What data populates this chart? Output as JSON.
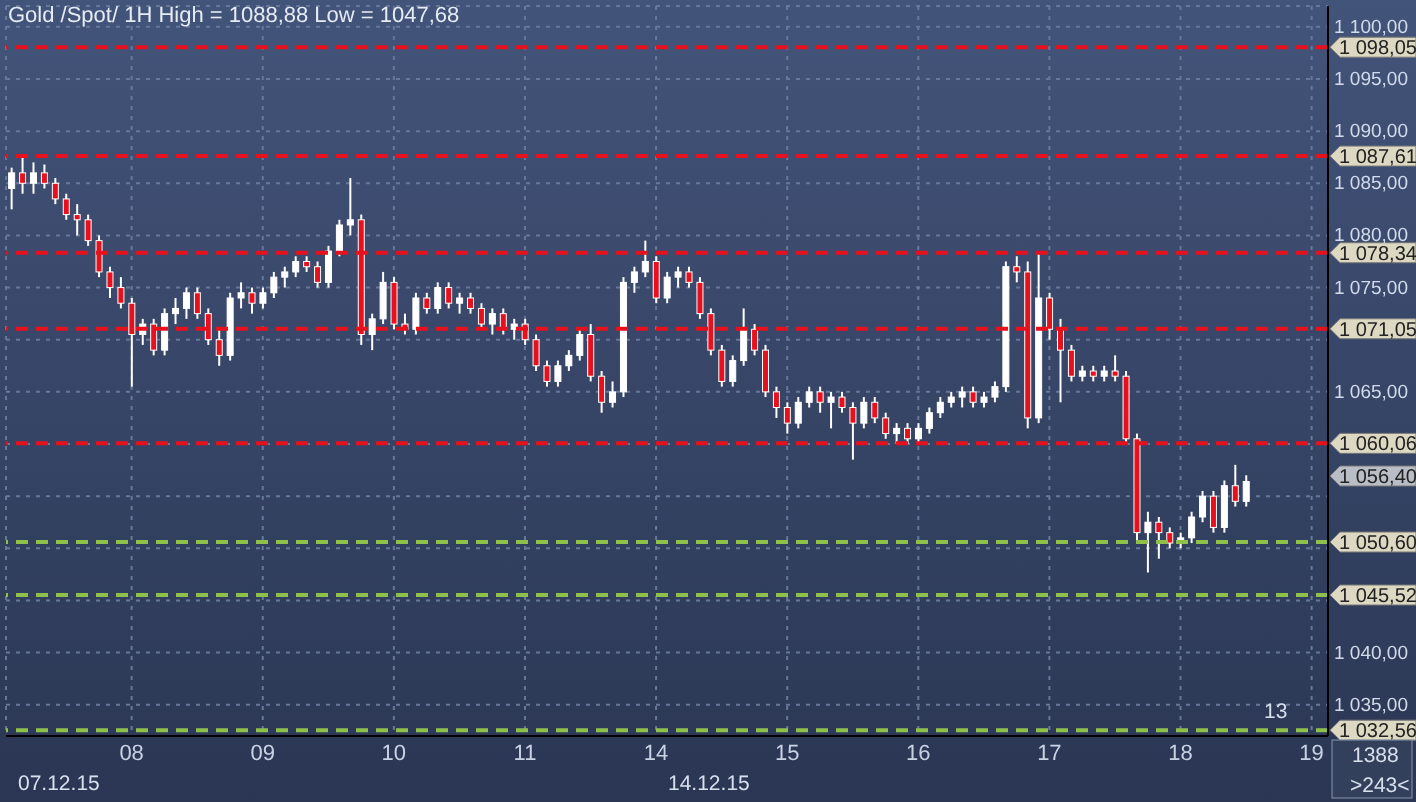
{
  "chart_data": {
    "type": "candlestick",
    "title": "Gold /Spot/ 1H High = 1088,88 Low = 1047,68",
    "categories": [
      null,
      null,
      null,
      null,
      null,
      null,
      null,
      null,
      null,
      null,
      null,
      "08",
      null,
      null,
      null,
      null,
      null,
      null,
      null,
      null,
      null,
      null,
      null,
      "09",
      null,
      null,
      null,
      null,
      null,
      null,
      null,
      null,
      null,
      null,
      null,
      "10",
      null,
      null,
      null,
      null,
      null,
      null,
      null,
      null,
      null,
      null,
      null,
      "11",
      null,
      null,
      null,
      null,
      null,
      null,
      null,
      null,
      null,
      null,
      null,
      "14",
      null,
      null,
      null,
      null,
      null,
      null,
      null,
      null,
      null,
      null,
      null,
      "15",
      null,
      null,
      null,
      null,
      null,
      null,
      null,
      null,
      null,
      null,
      null,
      "16",
      null,
      null,
      null,
      null,
      null,
      null,
      null,
      null,
      null,
      null,
      null,
      "17",
      null,
      null,
      null,
      null,
      null,
      null,
      null,
      null,
      null,
      null,
      null,
      "18",
      null,
      null,
      null,
      null,
      null,
      null,
      null,
      null,
      null,
      null,
      null,
      "19",
      null
    ],
    "ohlc": [
      [
        1084.5,
        1086.5,
        1082.5,
        1086
      ],
      [
        1086,
        1087.5,
        1084,
        1085
      ],
      [
        1085,
        1087,
        1084,
        1086
      ],
      [
        1086,
        1086.8,
        1084.5,
        1085
      ],
      [
        1085,
        1085.5,
        1083,
        1083.5
      ],
      [
        1083.5,
        1084,
        1081.5,
        1082
      ],
      [
        1082,
        1083,
        1080,
        1081.5
      ],
      [
        1081.5,
        1082,
        1079,
        1079.5
      ],
      [
        1079.5,
        1080,
        1076,
        1076.5
      ],
      [
        1076.5,
        1077,
        1074,
        1075
      ],
      [
        1075,
        1076,
        1073,
        1073.5
      ],
      [
        1073.5,
        1074,
        1065.5,
        1070.5
      ],
      [
        1070.5,
        1072,
        1069.5,
        1071.5
      ],
      [
        1071.5,
        1072,
        1068.5,
        1069
      ],
      [
        1069,
        1073,
        1068.5,
        1072.5
      ],
      [
        1072.5,
        1074,
        1071.5,
        1073
      ],
      [
        1073,
        1075,
        1072,
        1074.5
      ],
      [
        1074.5,
        1075,
        1072,
        1072.5
      ],
      [
        1072.5,
        1073,
        1069.5,
        1070
      ],
      [
        1070,
        1071,
        1067.5,
        1068.5
      ],
      [
        1068.5,
        1074.5,
        1068,
        1074
      ],
      [
        1074,
        1075.5,
        1073,
        1074.5
      ],
      [
        1074.5,
        1075,
        1072.5,
        1073.5
      ],
      [
        1073.5,
        1075,
        1073,
        1074.5
      ],
      [
        1074.5,
        1076.5,
        1074,
        1076
      ],
      [
        1076,
        1077,
        1075,
        1076.5
      ],
      [
        1076.5,
        1078,
        1076,
        1077.5
      ],
      [
        1077.5,
        1078,
        1076.5,
        1077
      ],
      [
        1077,
        1077.5,
        1075,
        1075.5
      ],
      [
        1075.5,
        1079,
        1075,
        1078.5
      ],
      [
        1078.5,
        1081.5,
        1078,
        1081
      ],
      [
        1081,
        1085.5,
        1080,
        1081.5
      ],
      [
        1081.5,
        1082,
        1069.5,
        1070.5
      ],
      [
        1070.5,
        1072.5,
        1069,
        1072
      ],
      [
        1072,
        1076.5,
        1071.5,
        1075.5
      ],
      [
        1075.5,
        1076,
        1071,
        1071.5
      ],
      [
        1071.5,
        1072.5,
        1070.5,
        1071
      ],
      [
        1071,
        1074.5,
        1070.5,
        1074
      ],
      [
        1074,
        1074.5,
        1072.5,
        1073
      ],
      [
        1073,
        1075.5,
        1072.5,
        1075
      ],
      [
        1075,
        1075.5,
        1073,
        1073.5
      ],
      [
        1073.5,
        1074.5,
        1072.5,
        1074
      ],
      [
        1074,
        1074.5,
        1072.5,
        1073
      ],
      [
        1073,
        1073.5,
        1071,
        1071.5
      ],
      [
        1071.5,
        1073,
        1070.5,
        1072.5
      ],
      [
        1072.5,
        1073,
        1070.5,
        1071
      ],
      [
        1071,
        1072,
        1070,
        1071.5
      ],
      [
        1071.5,
        1072,
        1069.5,
        1070
      ],
      [
        1070,
        1070.5,
        1067,
        1067.5
      ],
      [
        1067.5,
        1068,
        1065.5,
        1066
      ],
      [
        1066,
        1068,
        1065.5,
        1067.5
      ],
      [
        1067.5,
        1069,
        1067,
        1068.5
      ],
      [
        1068.5,
        1071,
        1068,
        1070.5
      ],
      [
        1070.5,
        1071.5,
        1066,
        1066.5
      ],
      [
        1066.5,
        1067,
        1063,
        1064
      ],
      [
        1064,
        1066,
        1063.5,
        1065
      ],
      [
        1065,
        1076,
        1064.5,
        1075.5
      ],
      [
        1075.5,
        1077,
        1074.5,
        1076.5
      ],
      [
        1076.5,
        1079.5,
        1076,
        1077.5
      ],
      [
        1077.5,
        1078,
        1073.5,
        1074
      ],
      [
        1074,
        1076.5,
        1073.5,
        1076
      ],
      [
        1076,
        1077,
        1075,
        1076.5
      ],
      [
        1076.5,
        1077,
        1075,
        1075.5
      ],
      [
        1075.5,
        1076,
        1072,
        1072.5
      ],
      [
        1072.5,
        1073,
        1068.5,
        1069
      ],
      [
        1069,
        1069.5,
        1065.5,
        1066
      ],
      [
        1066,
        1068.5,
        1065.5,
        1068
      ],
      [
        1068,
        1073,
        1067.5,
        1071
      ],
      [
        1071,
        1071.5,
        1068.5,
        1069
      ],
      [
        1069,
        1069.5,
        1064.5,
        1065
      ],
      [
        1065,
        1065.5,
        1062.5,
        1063.5
      ],
      [
        1063.5,
        1064,
        1061,
        1062
      ],
      [
        1062,
        1064.5,
        1061.5,
        1064
      ],
      [
        1064,
        1065.5,
        1063.5,
        1065
      ],
      [
        1065,
        1065.5,
        1063,
        1064
      ],
      [
        1064,
        1065,
        1061.5,
        1064.5
      ],
      [
        1064.5,
        1065,
        1063,
        1063.5
      ],
      [
        1063.5,
        1064,
        1058.5,
        1062
      ],
      [
        1062,
        1064.5,
        1061.5,
        1064
      ],
      [
        1064,
        1064.5,
        1062,
        1062.5
      ],
      [
        1062.5,
        1063,
        1060.5,
        1061
      ],
      [
        1061,
        1062,
        1060,
        1061.5
      ],
      [
        1061.5,
        1062,
        1060,
        1060.5
      ],
      [
        1060.5,
        1062,
        1060,
        1061.5
      ],
      [
        1061.5,
        1063.5,
        1061,
        1063
      ],
      [
        1063,
        1064.5,
        1062.5,
        1064
      ],
      [
        1064,
        1065,
        1063.5,
        1064.5
      ],
      [
        1064.5,
        1065.5,
        1063.5,
        1065
      ],
      [
        1065,
        1065.5,
        1063.5,
        1064
      ],
      [
        1064,
        1065,
        1063.5,
        1064.5
      ],
      [
        1064.5,
        1066,
        1064,
        1065.5
      ],
      [
        1065.5,
        1077.5,
        1065,
        1077
      ],
      [
        1077,
        1078,
        1075.5,
        1076.5
      ],
      [
        1076.5,
        1077.5,
        1061.5,
        1062.5
      ],
      [
        1062.5,
        1078.34,
        1062,
        1074
      ],
      [
        1074,
        1074.5,
        1070,
        1071
      ],
      [
        1071,
        1072,
        1064,
        1069
      ],
      [
        1069,
        1069.5,
        1066,
        1066.5
      ],
      [
        1066.5,
        1067.5,
        1066,
        1067
      ],
      [
        1067,
        1067.5,
        1066,
        1066.5
      ],
      [
        1066.5,
        1067.5,
        1066,
        1067
      ],
      [
        1067,
        1068.5,
        1066,
        1066.5
      ],
      [
        1066.5,
        1067,
        1060,
        1060.5
      ],
      [
        1060.5,
        1061,
        1050.5,
        1051.5
      ],
      [
        1051.5,
        1053.5,
        1047.68,
        1052.5
      ],
      [
        1052.5,
        1053,
        1049,
        1051.5
      ],
      [
        1051.5,
        1052,
        1050,
        1050.5
      ],
      [
        1050.5,
        1051.5,
        1050,
        1051
      ],
      [
        1051,
        1053.5,
        1050.5,
        1053
      ],
      [
        1053,
        1055.5,
        1052.5,
        1055
      ],
      [
        1055,
        1055.5,
        1051.5,
        1052
      ],
      [
        1052,
        1056.5,
        1051.5,
        1056
      ],
      [
        1056,
        1058,
        1054,
        1054.5
      ],
      [
        1054.5,
        1057,
        1054,
        1056.4
      ],
      null,
      null,
      null,
      null,
      null,
      null,
      null
    ],
    "colors": [
      "#ffffff",
      "#e8101c",
      "#ffffff",
      "#e8101c",
      "#e8101c",
      "#e8101c",
      "#e8101c",
      "#e8101c",
      "#e8101c",
      "#e8101c",
      "#e8101c",
      "#e8101c",
      "#ffffff",
      "#e8101c",
      "#ffffff",
      "#ffffff",
      "#ffffff",
      "#e8101c",
      "#e8101c",
      "#e8101c",
      "#ffffff",
      "#ffffff",
      "#e8101c",
      "#ffffff",
      "#ffffff",
      "#ffffff",
      "#ffffff",
      "#e8101c",
      "#e8101c",
      "#ffffff",
      "#ffffff",
      "#ffffff",
      "#e8101c",
      "#ffffff",
      "#ffffff",
      "#e8101c",
      "#e8101c",
      "#ffffff",
      "#e8101c",
      "#ffffff",
      "#e8101c",
      "#ffffff",
      "#e8101c",
      "#e8101c",
      "#ffffff",
      "#e8101c",
      "#ffffff",
      "#e8101c",
      "#e8101c",
      "#e8101c",
      "#ffffff",
      "#ffffff",
      "#ffffff",
      "#e8101c",
      "#e8101c",
      "#ffffff",
      "#ffffff",
      "#ffffff",
      "#ffffff",
      "#e8101c",
      "#ffffff",
      "#ffffff",
      "#e8101c",
      "#e8101c",
      "#e8101c",
      "#e8101c",
      "#ffffff",
      "#ffffff",
      "#e8101c",
      "#e8101c",
      "#e8101c",
      "#e8101c",
      "#ffffff",
      "#ffffff",
      "#e8101c",
      "#ffffff",
      "#e8101c",
      "#e8101c",
      "#ffffff",
      "#e8101c",
      "#e8101c",
      "#ffffff",
      "#e8101c",
      "#ffffff",
      "#ffffff",
      "#ffffff",
      "#ffffff",
      "#ffffff",
      "#e8101c",
      "#ffffff",
      "#ffffff",
      "#ffffff",
      "#e8101c",
      "#e8101c",
      "#ffffff",
      "#e8101c",
      "#e8101c",
      "#e8101c",
      "#ffffff",
      "#e8101c",
      "#ffffff",
      "#e8101c",
      "#e8101c",
      "#e8101c",
      "#ffffff",
      "#e8101c",
      "#e8101c",
      "#ffffff",
      "#ffffff",
      "#ffffff",
      "#e8101c",
      "#ffffff",
      "#e8101c",
      "#ffffff",
      null,
      null,
      null,
      null,
      null,
      null,
      null
    ],
    "ylim": [
      1032,
      1102
    ],
    "yticks": [
      {
        "value": 1035,
        "label": "1 035,00"
      },
      {
        "value": 1040,
        "label": "1 040,00"
      },
      {
        "value": 1045,
        "label": null
      },
      {
        "value": 1050,
        "label": null
      },
      {
        "value": 1055,
        "label": null
      },
      {
        "value": 1060,
        "label": null
      },
      {
        "value": 1065,
        "label": "1 065,00"
      },
      {
        "value": 1070,
        "label": null
      },
      {
        "value": 1075,
        "label": "1 075,00"
      },
      {
        "value": 1080,
        "label": "1 080,00"
      },
      {
        "value": 1085,
        "label": "1 085,00"
      },
      {
        "value": 1090,
        "label": "1 090,00"
      },
      {
        "value": 1095,
        "label": "1 095,00"
      },
      {
        "value": 1100,
        "label": "1 100,00"
      }
    ],
    "grid": true,
    "ref_lines": [
      {
        "axis": "y",
        "value": 1098.05,
        "label": "1 098,05",
        "color": "#e8101c",
        "line_style": "dashed"
      },
      {
        "axis": "y",
        "value": 1087.61,
        "label": "1 087,61",
        "color": "#e8101c",
        "line_style": "dashed"
      },
      {
        "axis": "y",
        "value": 1078.34,
        "label": "1 078,34",
        "color": "#e8101c",
        "line_style": "dashed"
      },
      {
        "axis": "y",
        "value": 1071.05,
        "label": "1 071,05",
        "color": "#e8101c",
        "line_style": "dashed"
      },
      {
        "axis": "y",
        "value": 1060.06,
        "label": "1 060,06",
        "color": "#e8101c",
        "line_style": "dashed"
      },
      {
        "axis": "y",
        "value": 1050.6,
        "label": "1 050,60",
        "color": "#8fc04a",
        "line_style": "dashed"
      },
      {
        "axis": "y",
        "value": 1045.52,
        "label": "1 045,52",
        "color": "#8fc04a",
        "line_style": "dashed"
      },
      {
        "axis": "y",
        "value": 1032.56,
        "label": "1 032,56",
        "color": "#8fc04a",
        "line_style": "dashed"
      }
    ],
    "annotations": [
      "07.12.15",
      "14.12.15",
      "1388",
      ">243<",
      "13",
      "1 056,40"
    ]
  }
}
